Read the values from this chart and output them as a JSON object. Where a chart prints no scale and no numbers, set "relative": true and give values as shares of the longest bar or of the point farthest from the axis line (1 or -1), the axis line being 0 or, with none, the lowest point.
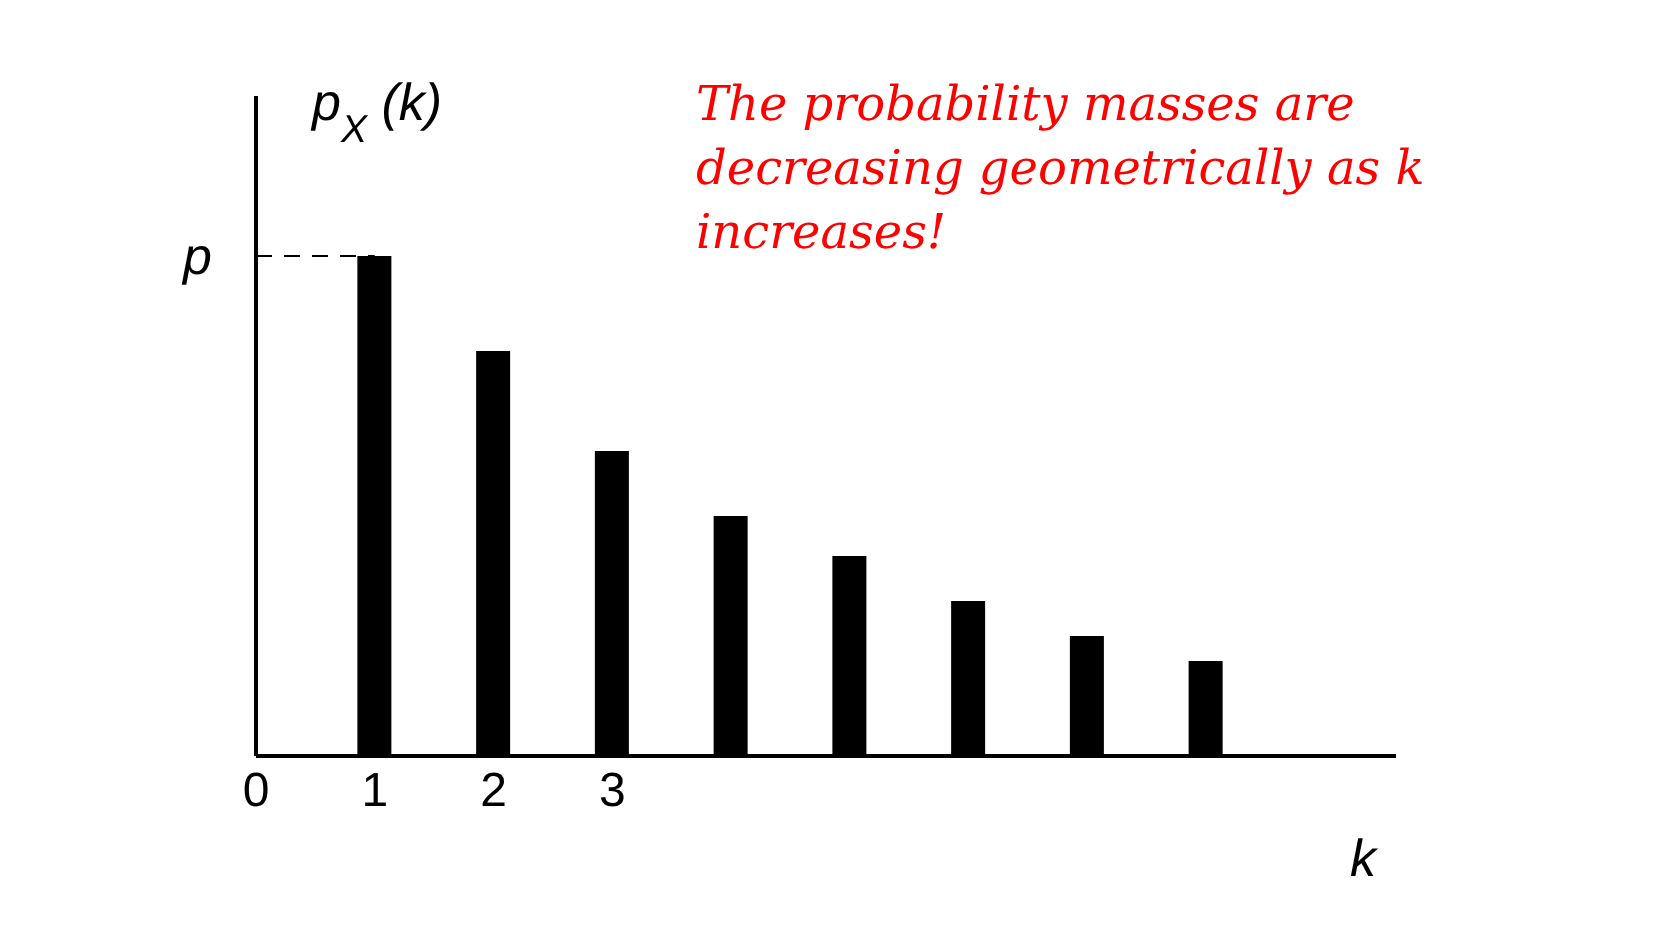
{
  "chart_data": {
    "type": "bar",
    "relative": true,
    "ylabel": "p$_{X}$(k)",
    "xlabel": "k",
    "x": [
      1,
      2,
      3,
      4,
      5,
      6,
      7,
      8
    ],
    "values": [
      1,
      0.81,
      0.61,
      0.48,
      0.4,
      0.31,
      0.24,
      0.19
    ],
    "color": "#000000",
    "xlim": [
      0,
      9.6
    ],
    "xticks": [
      0,
      1,
      2,
      3
    ],
    "ref_lines": [
      {
        "axis": "y",
        "value": 1,
        "label": "p",
        "line_style": "dashed",
        "color": "#000000"
      }
    ],
    "annotations": [
      "The probability masses are decreasing geometrically as k increases!"
    ]
  }
}
